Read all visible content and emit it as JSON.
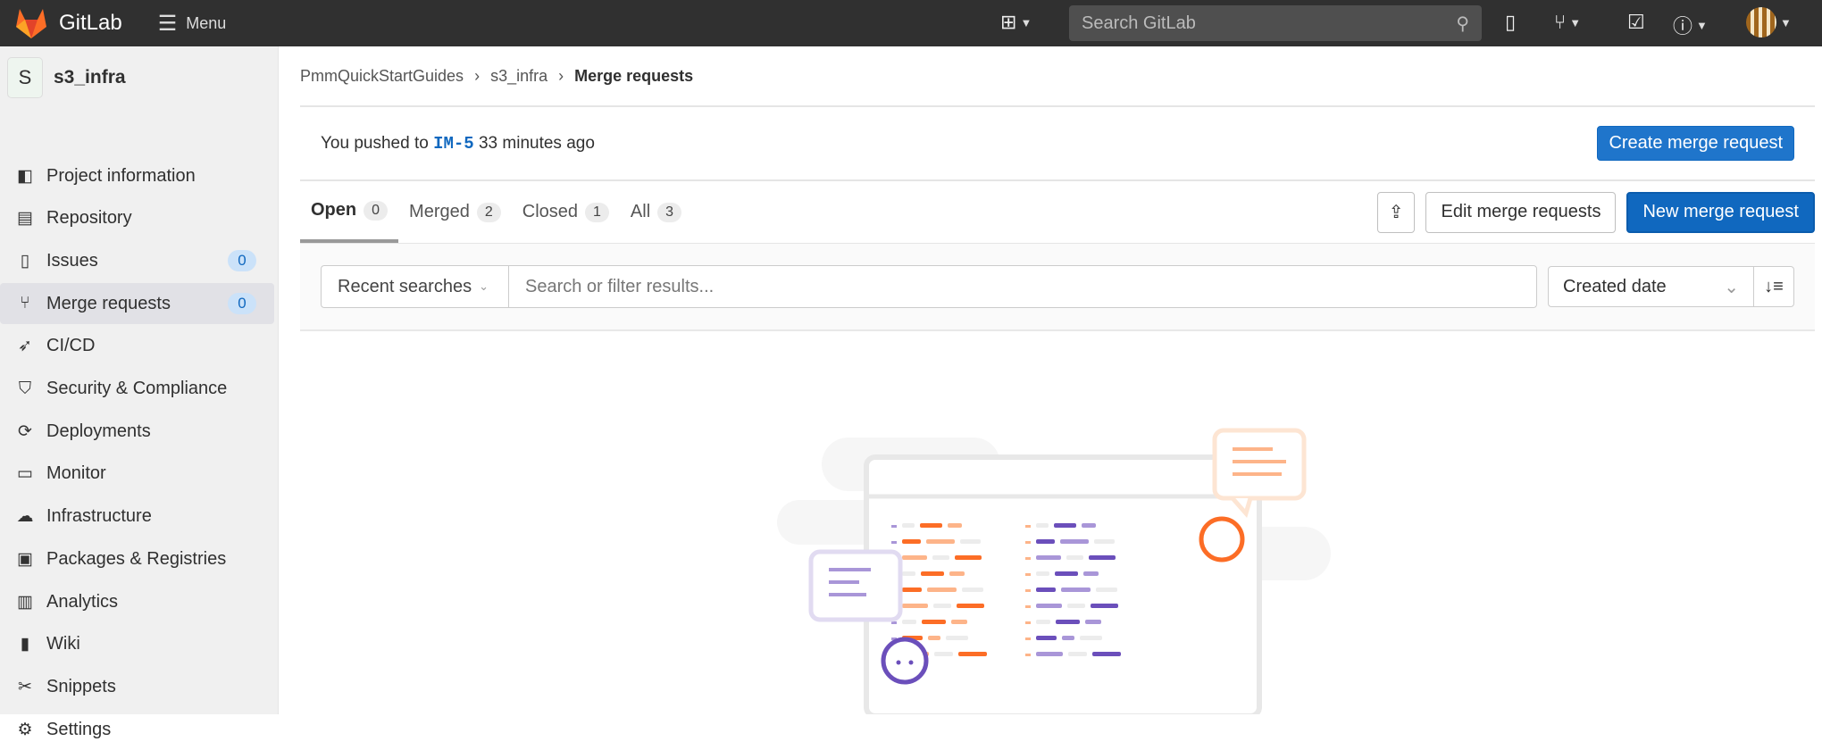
{
  "topbar": {
    "brand": "GitLab",
    "menu_label": "Menu",
    "search_placeholder": "Search GitLab"
  },
  "sidebar": {
    "project_initial": "S",
    "project_name": "s3_infra",
    "items": [
      {
        "label": "Project information",
        "icon": "project-icon"
      },
      {
        "label": "Repository",
        "icon": "doc-icon"
      },
      {
        "label": "Issues",
        "icon": "issues-icon",
        "badge": "0"
      },
      {
        "label": "Merge requests",
        "icon": "merge-request-icon",
        "badge": "0",
        "active": true
      },
      {
        "label": "CI/CD",
        "icon": "rocket-icon"
      },
      {
        "label": "Security & Compliance",
        "icon": "shield-icon"
      },
      {
        "label": "Deployments",
        "icon": "deployments-icon"
      },
      {
        "label": "Monitor",
        "icon": "monitor-icon"
      },
      {
        "label": "Infrastructure",
        "icon": "cloud-icon"
      },
      {
        "label": "Packages & Registries",
        "icon": "package-icon"
      },
      {
        "label": "Analytics",
        "icon": "chart-icon"
      },
      {
        "label": "Wiki",
        "icon": "book-icon"
      },
      {
        "label": "Snippets",
        "icon": "scissors-icon"
      },
      {
        "label": "Settings",
        "icon": "gear-icon"
      }
    ]
  },
  "breadcrumb": [
    "PmmQuickStartGuides",
    "s3_infra",
    "Merge requests"
  ],
  "push_banner": {
    "prefix": "You pushed to",
    "branch": "IM-5",
    "suffix": "33 minutes ago",
    "button": "Create merge request"
  },
  "tabs": [
    {
      "label": "Open",
      "count": "0"
    },
    {
      "label": "Merged",
      "count": "2"
    },
    {
      "label": "Closed",
      "count": "1"
    },
    {
      "label": "All",
      "count": "3"
    }
  ],
  "actions": {
    "edit": "Edit merge requests",
    "new": "New merge request"
  },
  "filter": {
    "recent": "Recent searches",
    "placeholder": "Search or filter results...",
    "sort": "Created date"
  },
  "colors": {
    "accent": "#1068bf",
    "topbar": "#303030"
  }
}
